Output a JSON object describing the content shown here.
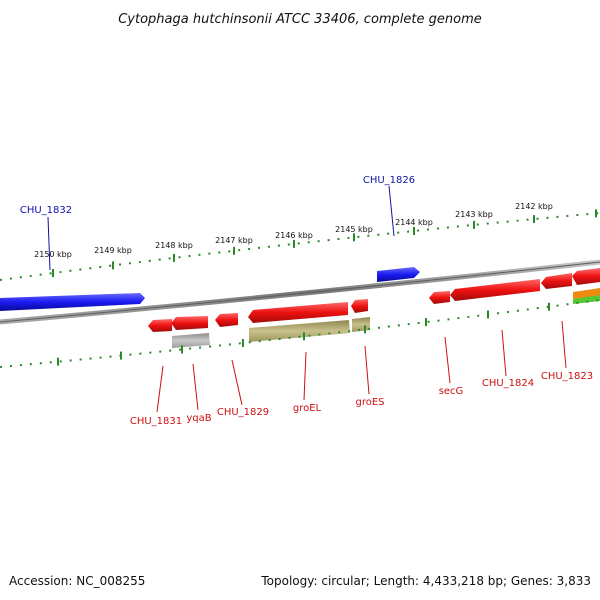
{
  "title": "Cytophaga hutchinsonii ATCC 33406, complete genome",
  "footer": {
    "accession": "Accession: NC_008255",
    "summary": "Topology: circular; Length: 4,433,218 bp; Genes: 3,833"
  },
  "colors": {
    "forward_gene": "#1b1bf0",
    "reverse_gene": "#ee1111",
    "pseudo_gray": "#a9a9a9",
    "khaki_feature": "#b5ad78",
    "orange_feature": "#f08a10",
    "green_feature": "#55c833",
    "backbone": "#8a8a8a",
    "tick": "#2a8a2a",
    "forward_label": "#1111aa",
    "reverse_label": "#cc1111"
  },
  "scale_labels": [
    "2150 kbp",
    "2149 kbp",
    "2148 kbp",
    "2147 kbp",
    "2146 kbp",
    "2145 kbp",
    "2144 kbp",
    "2143 kbp",
    "2142 kbp"
  ],
  "forward_labels": [
    "CHU_1832",
    "CHU_1826"
  ],
  "reverse_labels": [
    "CHU_1831",
    "yqaB",
    "CHU_1829",
    "groEL",
    "groES",
    "secG",
    "CHU_1824",
    "CHU_1823"
  ]
}
